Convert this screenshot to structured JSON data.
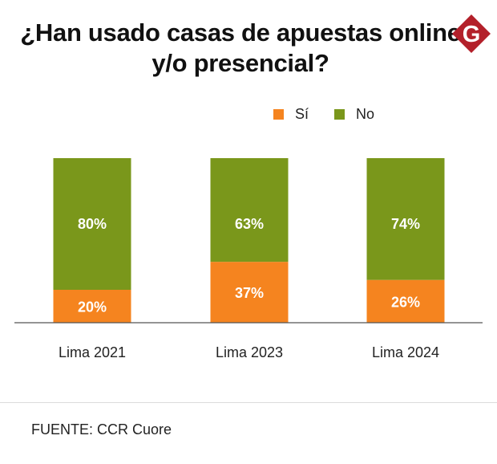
{
  "title": "¿Han usado casas de apuestas online y/o presencial?",
  "logo_letter": "G",
  "source": "FUENTE: CCR Cuore",
  "colors": {
    "si": "#f5841f",
    "no": "#7a971b",
    "logo": "#b3202a"
  },
  "chart_data": {
    "type": "bar",
    "stacked": true,
    "title": "¿Han usado casas de apuestas online y/o presencial?",
    "categories": [
      "Lima 2021",
      "Lima 2023",
      "Lima 2024"
    ],
    "series": [
      {
        "name": "Sí",
        "values": [
          20,
          37,
          26
        ],
        "labels": [
          "20%",
          "37%",
          "26%"
        ],
        "color": "#f5841f"
      },
      {
        "name": "No",
        "values": [
          80,
          63,
          74
        ],
        "labels": [
          "80%",
          "63%",
          "74%"
        ],
        "color": "#7a971b"
      }
    ],
    "ylim": [
      0,
      100
    ],
    "unit": "%",
    "legend_position": "top-right",
    "xlabel": "",
    "ylabel": ""
  }
}
